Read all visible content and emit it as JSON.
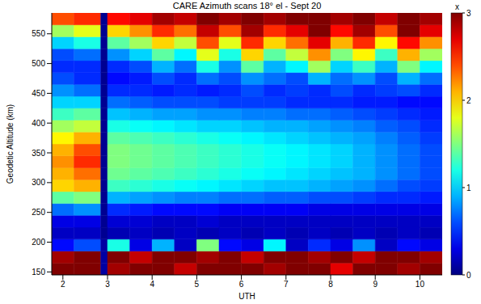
{
  "chart_data": {
    "type": "heatmap",
    "title": "CARE Azimuth scans 18° el - Sept 20",
    "x_label": "UTH",
    "y_label": "Geodetic Altitude (km)",
    "xlim": [
      1.75,
      10.5
    ],
    "ylim": [
      145,
      585
    ],
    "xticks": [
      2,
      3,
      4,
      5,
      6,
      7,
      8,
      9,
      10
    ],
    "yticks": [
      150,
      200,
      250,
      300,
      350,
      400,
      450,
      500,
      550
    ],
    "x_edges": [
      1.75,
      2.25,
      2.85,
      3.0,
      3.5,
      4.0,
      4.5,
      5.0,
      5.5,
      6.0,
      6.5,
      7.0,
      7.5,
      8.0,
      8.5,
      9.0,
      9.5,
      10.0,
      10.5
    ],
    "y_edges": [
      145,
      165,
      185,
      205,
      225,
      245,
      265,
      285,
      305,
      325,
      345,
      365,
      385,
      405,
      425,
      445,
      465,
      485,
      505,
      525,
      545,
      565,
      585
    ],
    "cells": [
      [
        3,
        3,
        0.1,
        2.9,
        3,
        3,
        2.8,
        3,
        3,
        3,
        2.9,
        3,
        3,
        2.7,
        3,
        3,
        2.9,
        3
      ],
      [
        2.9,
        3,
        0.1,
        3,
        2.8,
        3,
        3,
        2.9,
        3,
        2.8,
        3,
        3,
        2.9,
        3,
        2.8,
        3,
        3,
        2.9
      ],
      [
        0.4,
        0.6,
        0.1,
        1.2,
        0.3,
        0.9,
        0.2,
        1.5,
        0.4,
        0.3,
        1.1,
        0.2,
        0.5,
        0.3,
        0.8,
        0.2,
        0.4,
        0.3
      ],
      [
        0.2,
        0.2,
        0.05,
        0.15,
        0.2,
        0.15,
        0.2,
        0.15,
        0.2,
        0.15,
        0.2,
        0.15,
        0.2,
        0.15,
        0.2,
        0.15,
        0.2,
        0.15
      ],
      [
        0.3,
        0.3,
        0.05,
        0.25,
        0.25,
        0.2,
        0.2,
        0.25,
        0.2,
        0.2,
        0.2,
        0.2,
        0.2,
        0.2,
        0.2,
        0.2,
        0.2,
        0.2
      ],
      [
        0.7,
        0.8,
        0.05,
        0.5,
        0.45,
        0.4,
        0.4,
        0.4,
        0.35,
        0.35,
        0.35,
        0.35,
        0.3,
        0.3,
        0.3,
        0.3,
        0.3,
        0.3
      ],
      [
        1.4,
        1.5,
        0.05,
        0.9,
        0.85,
        0.8,
        0.75,
        0.75,
        0.7,
        0.7,
        0.65,
        0.65,
        0.6,
        0.6,
        0.55,
        0.5,
        0.5,
        0.45
      ],
      [
        2.0,
        2.1,
        0.05,
        1.3,
        1.25,
        1.2,
        1.15,
        1.1,
        1.05,
        1.0,
        0.95,
        0.95,
        0.9,
        0.85,
        0.8,
        0.7,
        0.6,
        0.55
      ],
      [
        2.1,
        2.3,
        0.05,
        1.45,
        1.4,
        1.35,
        1.3,
        1.25,
        1.2,
        1.15,
        1.1,
        1.05,
        1.0,
        0.95,
        0.9,
        0.8,
        0.7,
        0.6
      ],
      [
        2.2,
        2.5,
        0.05,
        1.5,
        1.45,
        1.4,
        1.35,
        1.3,
        1.25,
        1.2,
        1.15,
        1.1,
        1.05,
        1.0,
        0.9,
        0.8,
        0.7,
        0.6
      ],
      [
        2.1,
        2.4,
        0.05,
        1.5,
        1.45,
        1.4,
        1.35,
        1.3,
        1.25,
        1.2,
        1.15,
        1.1,
        1.05,
        1.0,
        0.9,
        0.8,
        0.7,
        0.6
      ],
      [
        1.9,
        2.1,
        0.05,
        1.4,
        1.35,
        1.3,
        1.25,
        1.2,
        1.15,
        1.1,
        1.05,
        1.0,
        0.95,
        0.9,
        0.85,
        0.75,
        0.65,
        0.55
      ],
      [
        1.6,
        1.7,
        0.05,
        1.2,
        1.15,
        1.1,
        1.05,
        1.0,
        1.0,
        0.95,
        0.9,
        0.9,
        0.85,
        0.8,
        0.75,
        0.65,
        0.6,
        0.5
      ],
      [
        1.3,
        1.4,
        0.05,
        0.95,
        0.9,
        0.85,
        0.85,
        0.8,
        0.8,
        0.75,
        0.75,
        0.7,
        0.7,
        0.65,
        0.6,
        0.55,
        0.5,
        0.45
      ],
      [
        1.0,
        1.0,
        0.05,
        0.7,
        0.65,
        0.6,
        0.6,
        0.6,
        0.55,
        0.55,
        0.55,
        0.5,
        0.5,
        0.5,
        0.45,
        0.45,
        0.4,
        0.4
      ],
      [
        0.8,
        0.7,
        0.05,
        0.5,
        0.5,
        0.45,
        0.5,
        0.45,
        0.5,
        0.6,
        0.5,
        0.55,
        0.5,
        0.6,
        0.5,
        0.55,
        0.6,
        0.5
      ],
      [
        0.6,
        0.5,
        0.05,
        0.4,
        0.45,
        0.6,
        0.5,
        0.7,
        0.6,
        0.8,
        0.7,
        0.6,
        0.9,
        0.7,
        0.8,
        0.6,
        0.9,
        0.7
      ],
      [
        0.5,
        0.5,
        0.05,
        0.5,
        0.6,
        0.9,
        0.7,
        1.2,
        0.8,
        1.4,
        0.9,
        1.1,
        1.6,
        1.0,
        1.3,
        0.9,
        1.5,
        1.1
      ],
      [
        0.6,
        0.7,
        0.05,
        0.8,
        1.0,
        1.4,
        1.1,
        1.8,
        1.2,
        2.0,
        1.4,
        1.7,
        2.2,
        1.5,
        1.9,
        1.3,
        2.1,
        1.6
      ],
      [
        1.0,
        1.2,
        0.05,
        1.4,
        1.6,
        2.0,
        1.7,
        2.4,
        1.8,
        2.5,
        2.0,
        2.3,
        2.7,
        2.1,
        2.5,
        1.9,
        2.6,
        2.2
      ],
      [
        1.6,
        1.8,
        0.05,
        2.0,
        2.2,
        2.5,
        2.3,
        2.8,
        2.4,
        2.9,
        2.5,
        2.7,
        3.0,
        2.6,
        2.9,
        2.4,
        3.0,
        2.7
      ],
      [
        2.4,
        2.5,
        0.05,
        2.6,
        2.7,
        2.9,
        2.8,
        3.0,
        2.9,
        3.0,
        2.9,
        3.0,
        3.0,
        2.9,
        3.0,
        2.8,
        3.0,
        2.9
      ]
    ],
    "colorbar_range": [
      0,
      3
    ],
    "colorbar_ticks": [
      0,
      1,
      2,
      3
    ],
    "colorbar_label": "x"
  }
}
